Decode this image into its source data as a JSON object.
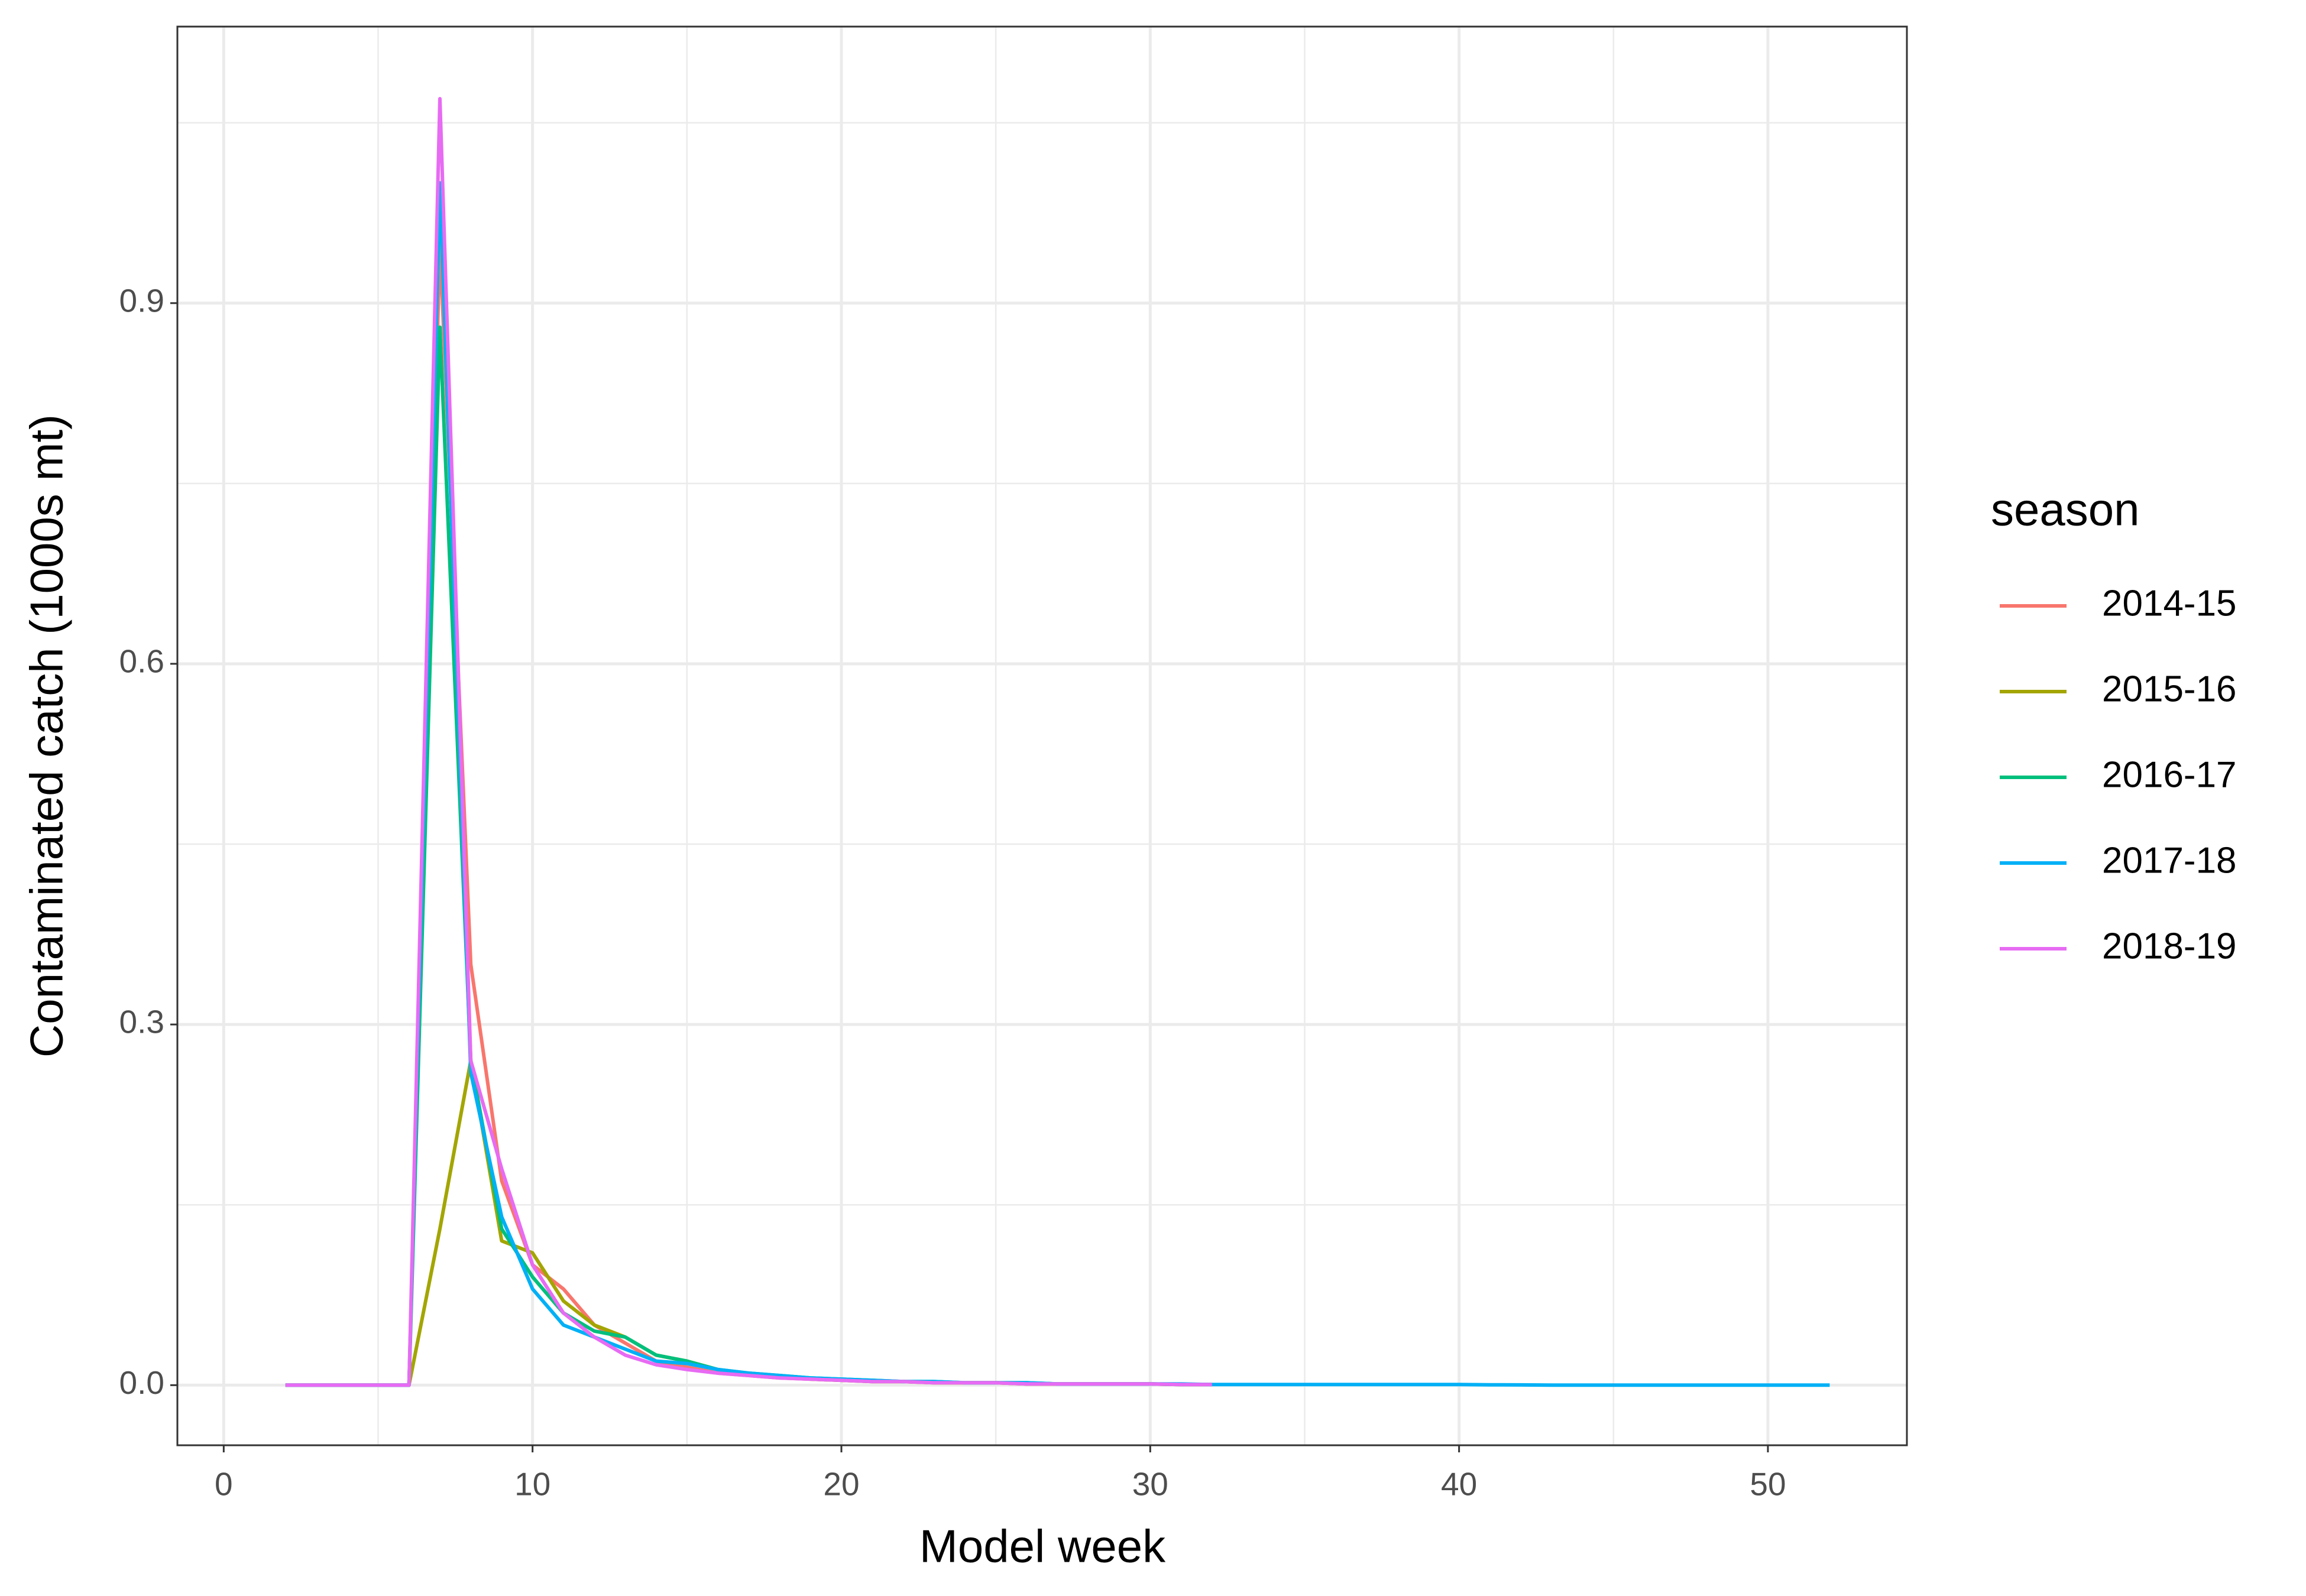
{
  "chart_data": {
    "type": "line",
    "x_label": "Model week",
    "y_label": "Contaminated catch (1000s mt)",
    "legend_title": "season",
    "x": [
      2,
      3,
      4,
      5,
      6,
      7,
      8,
      9,
      10,
      11,
      12,
      13,
      14,
      15,
      16,
      17,
      18,
      19,
      20,
      21,
      22,
      23,
      24,
      25,
      26,
      27,
      28,
      29,
      30,
      31,
      32,
      33,
      34,
      35,
      36,
      37,
      38,
      39,
      40,
      41,
      42,
      43,
      44,
      45,
      46,
      47,
      48,
      49,
      50,
      51,
      52
    ],
    "series": [
      {
        "name": "2014-15",
        "color": "#F8766D",
        "values": [
          0,
          0,
          0,
          0,
          0,
          0.95,
          0.35,
          0.17,
          0.1,
          0.08,
          0.05,
          0.035,
          0.02,
          0.015,
          0.01,
          0.008,
          0.006,
          0.005,
          0.004,
          0.003,
          0.003,
          0.002,
          0.002,
          0.002,
          0.001,
          0.001,
          0.001,
          0.001,
          0.001,
          0.0005,
          0.0005,
          null,
          null,
          null,
          null,
          null,
          null,
          null,
          null,
          null,
          null,
          null,
          null,
          null,
          null,
          null,
          null,
          null,
          null,
          null,
          null
        ]
      },
      {
        "name": "2015-16",
        "color": "#A3A500",
        "values": [
          0,
          0,
          0,
          0,
          0,
          0.13,
          0.27,
          0.12,
          0.11,
          0.07,
          0.05,
          0.04,
          0.025,
          0.02,
          0.013,
          0.009,
          0.007,
          0.005,
          0.004,
          0.003,
          0.003,
          0.002,
          0.002,
          0.002,
          0.001,
          0.001,
          0.001,
          0.001,
          0.001,
          0.0005,
          0.0005,
          null,
          null,
          null,
          null,
          null,
          null,
          null,
          null,
          null,
          null,
          null,
          null,
          null,
          null,
          null,
          null,
          null,
          null,
          null,
          null
        ]
      },
      {
        "name": "2016-17",
        "color": "#00BF7D",
        "values": [
          0,
          0,
          0,
          0,
          0,
          0.88,
          0.27,
          0.13,
          0.09,
          0.06,
          0.045,
          0.04,
          0.025,
          0.02,
          0.013,
          0.01,
          0.008,
          0.006,
          0.005,
          0.004,
          0.003,
          0.003,
          0.002,
          0.002,
          0.002,
          0.001,
          0.001,
          0.001,
          0.001,
          0.0005,
          0.0005,
          null,
          null,
          null,
          null,
          null,
          null,
          null,
          null,
          null,
          null,
          null,
          null,
          null,
          null,
          null,
          null,
          null,
          null,
          null,
          null
        ]
      },
      {
        "name": "2017-18",
        "color": "#00B0F6",
        "values": [
          0,
          0,
          0,
          0,
          0,
          1.0,
          0.26,
          0.14,
          0.08,
          0.05,
          0.04,
          0.03,
          0.02,
          0.018,
          0.013,
          0.01,
          0.008,
          0.006,
          0.005,
          0.004,
          0.003,
          0.003,
          0.002,
          0.002,
          0.002,
          0.001,
          0.001,
          0.001,
          0.001,
          0.001,
          0.0005,
          0.0005,
          0.0005,
          0.0005,
          0.0005,
          0.0005,
          0.0005,
          0.0005,
          0.0005,
          0.0003,
          0.0002,
          0,
          0,
          0,
          0,
          0,
          0,
          0,
          0,
          0,
          0
        ]
      },
      {
        "name": "2018-19",
        "color": "#E76BF3",
        "values": [
          0,
          0,
          0,
          0,
          0,
          1.07,
          0.27,
          0.18,
          0.1,
          0.06,
          0.04,
          0.025,
          0.017,
          0.013,
          0.01,
          0.008,
          0.006,
          0.005,
          0.004,
          0.003,
          0.003,
          0.002,
          0.002,
          0.002,
          0.001,
          0.001,
          0.001,
          0.001,
          0.001,
          0.0005,
          0.0005,
          null,
          null,
          null,
          null,
          null,
          null,
          null,
          null,
          null,
          null,
          null,
          null,
          null,
          null,
          null,
          null,
          null,
          null,
          null,
          null
        ]
      }
    ],
    "xlim": [
      -1.5,
      54.5
    ],
    "ylim": [
      -0.05,
      1.13
    ],
    "xticks": [
      0,
      10,
      20,
      30,
      40,
      50
    ],
    "yticks": [
      {
        "value": 0,
        "label": "0.0"
      },
      0.3,
      0.6,
      0.9
    ],
    "x_minor_grid": [
      5,
      15,
      25,
      35,
      45
    ],
    "y_minor_grid": [
      0.15,
      0.45,
      0.75,
      1.05
    ],
    "grid": true,
    "legend": "right"
  }
}
